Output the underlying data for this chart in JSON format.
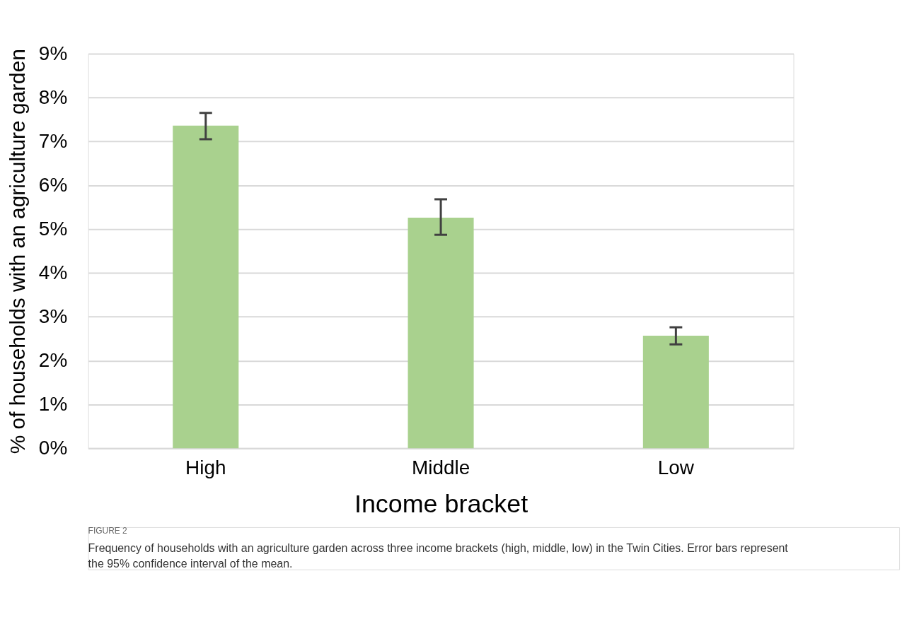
{
  "chart_data": {
    "type": "bar",
    "title": "FIGURE 2",
    "xlabel": "Income bracket",
    "ylabel": "% of households with an agriculture garden",
    "categories": [
      "High",
      "Middle",
      "Low"
    ],
    "values": [
      7.36,
      5.26,
      2.57
    ],
    "errors": [
      [
        7.05,
        7.65
      ],
      [
        4.87,
        5.68
      ],
      [
        2.37,
        2.76
      ]
    ],
    "color": "#a9d18e",
    "ylim": [
      0,
      9
    ],
    "yticks": [
      {
        "value": 0,
        "label": "0%"
      },
      {
        "value": 1,
        "label": "1%"
      },
      {
        "value": 2,
        "label": "2%"
      },
      {
        "value": 3,
        "label": "3%"
      },
      {
        "value": 4,
        "label": "4%"
      },
      {
        "value": 5,
        "label": "5%"
      },
      {
        "value": 6,
        "label": "6%"
      },
      {
        "value": 7,
        "label": "7%"
      },
      {
        "value": 8,
        "label": "8%"
      },
      {
        "value": 9,
        "label": "9%"
      }
    ],
    "grid": "y",
    "annotations": [
      "Frequency of households with an agriculture garden across three income brackets (high, middle, low) in the Twin Cities. Error bars represent the 95% confidence interval of the mean."
    ]
  }
}
